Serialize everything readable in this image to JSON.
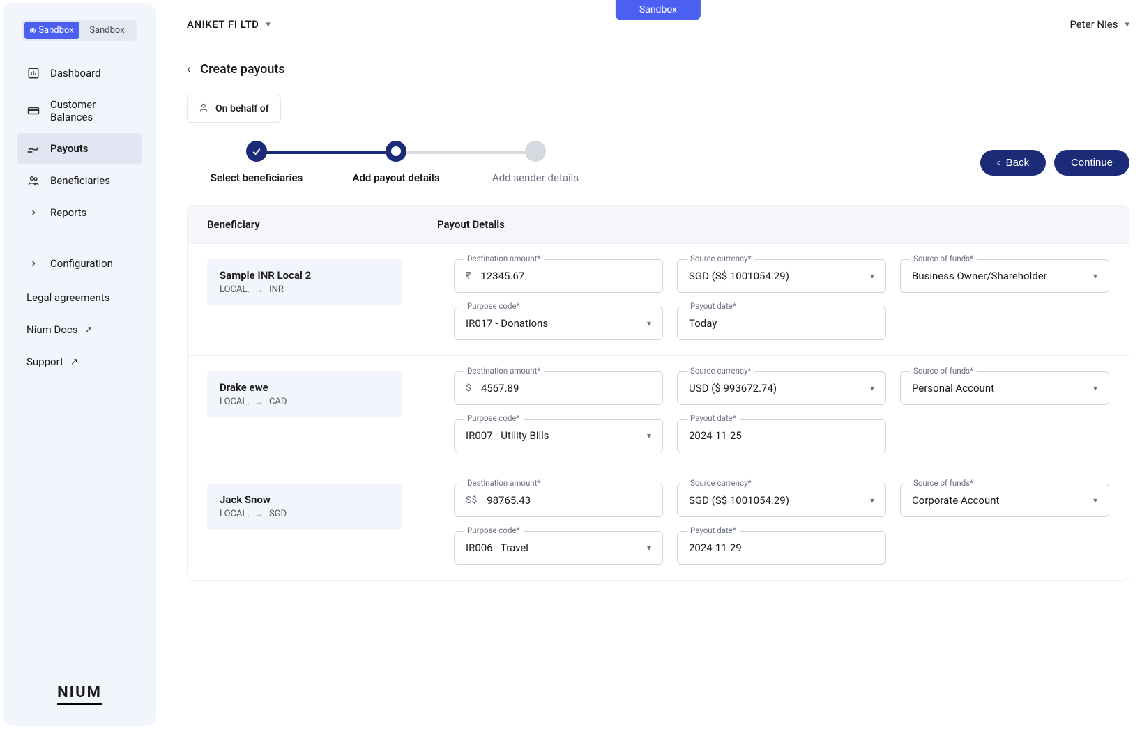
{
  "env_tabs": {
    "active": "Sandbox",
    "inactive": "Sandbox"
  },
  "sidebar": {
    "items": [
      {
        "label": "Dashboard"
      },
      {
        "label": "Customer Balances"
      },
      {
        "label": "Payouts"
      },
      {
        "label": "Beneficiaries"
      },
      {
        "label": "Reports"
      },
      {
        "label": "Configuration"
      }
    ],
    "footer": [
      {
        "label": "Legal agreements"
      },
      {
        "label": "Nium Docs"
      },
      {
        "label": "Support"
      }
    ]
  },
  "brand": "NIUM",
  "sandbox_badge": "Sandbox",
  "org_name": "ANIKET FI LTD",
  "user_name": "Peter Nies",
  "page_title": "Create payouts",
  "on_behalf": "On behalf of",
  "stepper": {
    "steps": [
      {
        "label": "Select beneficiaries",
        "state": "done"
      },
      {
        "label": "Add payout details",
        "state": "current"
      },
      {
        "label": "Add sender details",
        "state": "pending"
      }
    ]
  },
  "buttons": {
    "back": "Back",
    "continue": "Continue"
  },
  "table": {
    "headers": {
      "beneficiary": "Beneficiary",
      "details": "Payout Details"
    },
    "field_labels": {
      "dest_amount": "Destination amount*",
      "src_currency": "Source currency*",
      "src_funds": "Source of funds*",
      "purpose": "Purpose code*",
      "payout_date": "Payout date*"
    },
    "rows": [
      {
        "name": "Sample INR Local 2",
        "type": "LOCAL,",
        "currency": "INR",
        "symbol": "₹",
        "amount": "12345.67",
        "src_currency": "SGD (S$ 1001054.29)",
        "src_funds": "Business Owner/Shareholder",
        "purpose": "IR017 - Donations",
        "date": "Today"
      },
      {
        "name": "Drake ewe",
        "type": "LOCAL,",
        "currency": "CAD",
        "symbol": "$",
        "amount": "4567.89",
        "src_currency": "USD ($ 993672.74)",
        "src_funds": "Personal Account",
        "purpose": "IR007 - Utility Bills",
        "date": "2024-11-25"
      },
      {
        "name": "Jack Snow",
        "type": "LOCAL,",
        "currency": "SGD",
        "symbol": "S$",
        "amount": "98765.43",
        "src_currency": "SGD (S$ 1001054.29)",
        "src_funds": "Corporate Account",
        "purpose": "IR006 - Travel",
        "date": "2024-11-29"
      }
    ]
  },
  "colors": {
    "sidebar_bg": "#f2f5fb",
    "primary_accent": "#4b5ff1",
    "step_navy": "#1b2b77",
    "border": "#eef0f4",
    "muted_text": "#6b7280"
  }
}
